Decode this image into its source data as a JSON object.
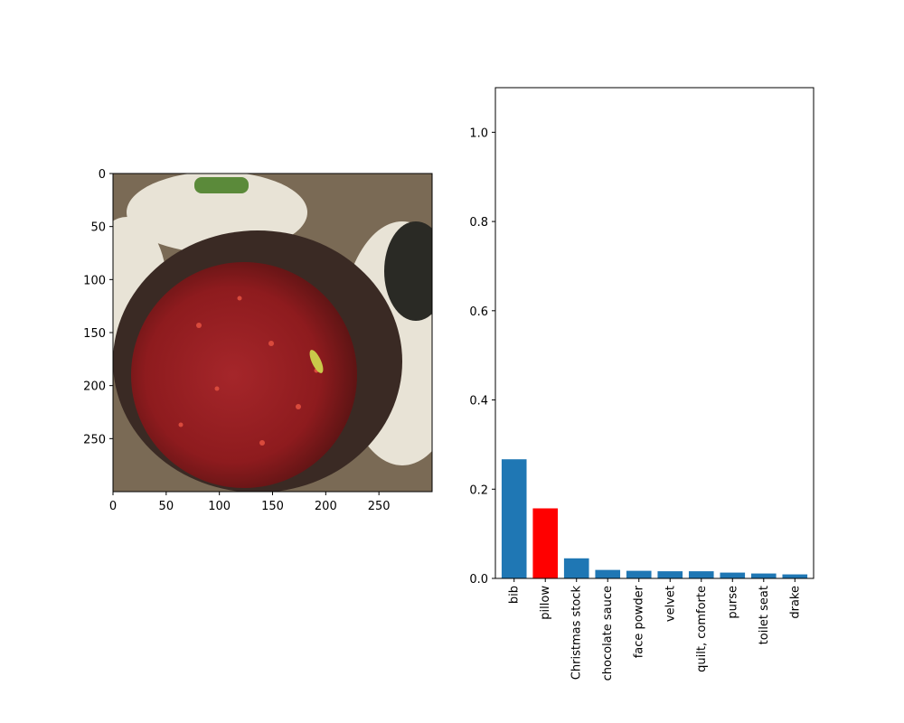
{
  "image_panel": {
    "x_ticks": [
      "0",
      "50",
      "100",
      "150",
      "200",
      "250"
    ],
    "y_ticks": [
      "0",
      "50",
      "100",
      "150",
      "200",
      "250"
    ],
    "x_tick_values": [
      0,
      50,
      100,
      150,
      200,
      250
    ],
    "y_tick_values": [
      0,
      50,
      100,
      150,
      200,
      250
    ],
    "extent": [
      300,
      300
    ],
    "colors": {
      "background": "#7a6a55",
      "plate": "#e8e3d6",
      "bowl": "#3a2a24",
      "sauce": "#8e1b1e",
      "highlight": "#d94a3c",
      "garnish_green": "#5b8a3a",
      "garnish_yellow": "#c9c94a",
      "dark_accent": "#2a2a25"
    }
  },
  "chart_data": {
    "type": "bar",
    "categories": [
      "bib",
      "pillow",
      "Christmas stock",
      "chocolate sauce",
      "face powder",
      "velvet",
      "quilt, comforte",
      "purse",
      "toilet seat",
      "drake"
    ],
    "values": [
      0.267,
      0.157,
      0.045,
      0.019,
      0.017,
      0.016,
      0.016,
      0.013,
      0.011,
      0.009
    ],
    "highlight_index": 1,
    "colors": {
      "default": "#1f77b4",
      "highlight": "#ff0000"
    },
    "ylim": [
      0,
      1.1
    ],
    "y_ticks": [
      0.0,
      0.2,
      0.4,
      0.6,
      0.8,
      1.0
    ],
    "y_tick_labels": [
      "0.0",
      "0.2",
      "0.4",
      "0.6",
      "0.8",
      "1.0"
    ],
    "title": "",
    "xlabel": "",
    "ylabel": ""
  }
}
